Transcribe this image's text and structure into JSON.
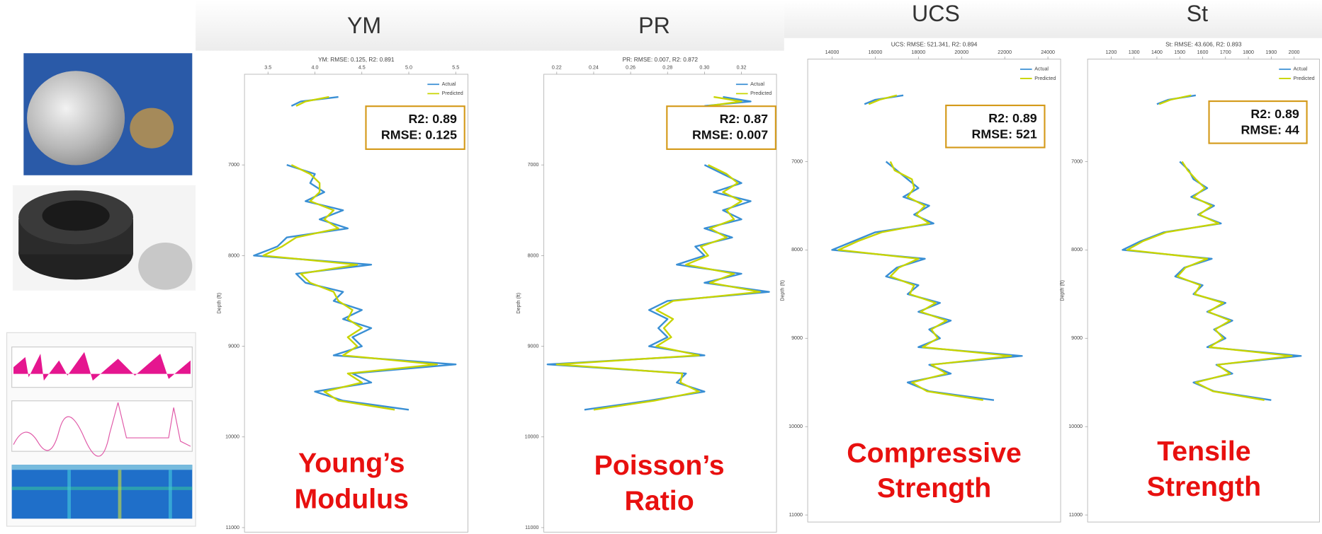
{
  "chart_data": [
    {
      "type": "line",
      "header": "YM",
      "title": "YM: RMSE: 0.125, R2: 0.891",
      "ylabel": "Depth (ft)",
      "xlim": [
        3.25,
        5.63
      ],
      "xticks": [
        3.5,
        {
          "value": 4,
          "label": "4.0"
        },
        4.5,
        {
          "value": 5,
          "label": "5.0"
        },
        5.5
      ],
      "ylim": [
        6000,
        11050
      ],
      "yticks": [
        7000,
        8000,
        9000,
        10000,
        11000
      ],
      "y_inverted": true,
      "y": [
        6250,
        6300,
        6350,
        6600,
        7000,
        7100,
        7200,
        7300,
        7400,
        7500,
        7600,
        7700,
        7800,
        7900,
        8000,
        8100,
        8200,
        8300,
        8400,
        8500,
        8600,
        8700,
        8800,
        8900,
        9000,
        9100,
        9200,
        9300,
        9400,
        9500,
        9600,
        9700
      ],
      "series": [
        {
          "name": "Actual",
          "color": "#3a8fd4",
          "values": [
            4.25,
            3.85,
            3.75,
            null,
            3.7,
            4.0,
            3.95,
            4.1,
            3.9,
            4.3,
            4.05,
            4.35,
            3.7,
            3.6,
            3.35,
            4.6,
            3.8,
            3.9,
            4.3,
            4.2,
            4.5,
            4.3,
            4.6,
            4.4,
            4.5,
            4.2,
            5.5,
            4.4,
            4.6,
            4.0,
            4.3,
            5.0
          ]
        },
        {
          "name": "Predicted",
          "color": "#c8d400",
          "values": [
            4.15,
            3.9,
            3.8,
            null,
            3.75,
            3.95,
            4.05,
            4.05,
            3.95,
            4.2,
            4.1,
            4.25,
            3.8,
            3.65,
            3.45,
            4.45,
            3.85,
            3.95,
            4.2,
            4.25,
            4.4,
            4.35,
            4.5,
            4.35,
            4.45,
            4.3,
            5.3,
            4.35,
            4.5,
            4.1,
            4.25,
            4.85
          ]
        }
      ],
      "annotations": [
        "R2: 0.89",
        "RMSE: 0.125"
      ],
      "caption": [
        "Young’s",
        "Modulus"
      ]
    },
    {
      "type": "line",
      "header": "PR",
      "title": "PR: RMSE: 0.007, R2: 0.872",
      "ylabel": "Depth (ft)",
      "xlim": [
        0.213,
        0.339
      ],
      "xticks": [
        0.22,
        0.24,
        0.26,
        0.28,
        {
          "value": 0.3,
          "label": "0.30"
        },
        0.32
      ],
      "ylim": [
        6000,
        11050
      ],
      "yticks": [
        7000,
        8000,
        9000,
        10000,
        11000
      ],
      "y_inverted": true,
      "y": [
        6250,
        6300,
        6350,
        6600,
        7000,
        7100,
        7200,
        7300,
        7400,
        7500,
        7600,
        7700,
        7800,
        7900,
        8000,
        8100,
        8200,
        8300,
        8400,
        8500,
        8600,
        8700,
        8800,
        8900,
        9000,
        9100,
        9200,
        9300,
        9400,
        9500,
        9600,
        9700
      ],
      "series": [
        {
          "name": "Actual",
          "color": "#3a8fd4",
          "values": [
            0.31,
            0.325,
            0.3,
            null,
            0.3,
            0.31,
            0.32,
            0.305,
            0.325,
            0.31,
            0.32,
            0.3,
            0.315,
            0.295,
            0.3,
            0.285,
            0.32,
            0.3,
            0.335,
            0.28,
            0.27,
            0.28,
            0.275,
            0.28,
            0.27,
            0.3,
            0.215,
            0.29,
            0.285,
            0.3,
            0.27,
            0.235
          ]
        },
        {
          "name": "Predicted",
          "color": "#c8d400",
          "values": [
            0.305,
            0.32,
            0.302,
            null,
            0.302,
            0.312,
            0.318,
            0.31,
            0.32,
            0.312,
            0.316,
            0.303,
            0.312,
            0.298,
            0.302,
            0.29,
            0.316,
            0.303,
            0.33,
            0.283,
            0.274,
            0.283,
            0.278,
            0.282,
            0.274,
            0.297,
            0.22,
            0.288,
            0.287,
            0.297,
            0.273,
            0.24
          ]
        }
      ],
      "annotations": [
        "R2: 0.87",
        "RMSE: 0.007"
      ],
      "caption": [
        "Poisson’s",
        "Ratio"
      ]
    },
    {
      "type": "line",
      "header": "UCS",
      "title": "UCS: RMSE: 521.341, R2: 0.894",
      "ylabel": "Depth (ft)",
      "xlim": [
        12870,
        24590
      ],
      "xticks": [
        14000,
        16000,
        18000,
        20000,
        22000,
        24000
      ],
      "ylim": [
        5840,
        11080
      ],
      "yticks": [
        7000,
        8000,
        9000,
        10000,
        11000
      ],
      "y_inverted": true,
      "y": [
        6250,
        6300,
        6350,
        6600,
        7000,
        7100,
        7200,
        7300,
        7400,
        7500,
        7600,
        7700,
        7800,
        7900,
        8000,
        8100,
        8200,
        8300,
        8400,
        8500,
        8600,
        8700,
        8800,
        8900,
        9000,
        9100,
        9200,
        9300,
        9400,
        9500,
        9600,
        9700
      ],
      "series": [
        {
          "name": "Actual",
          "color": "#3a8fd4",
          "values": [
            17300,
            16000,
            15500,
            null,
            16500,
            17000,
            17500,
            18000,
            17300,
            18500,
            17800,
            18700,
            16000,
            15000,
            14000,
            18300,
            17000,
            16500,
            18000,
            17500,
            19000,
            18000,
            19500,
            18500,
            19000,
            18000,
            22800,
            18500,
            19500,
            17500,
            18500,
            21500
          ]
        },
        {
          "name": "Predicted",
          "color": "#c8d400",
          "values": [
            17000,
            16200,
            15700,
            null,
            16700,
            16900,
            17700,
            17800,
            17500,
            18300,
            17900,
            18500,
            16300,
            15200,
            14300,
            18000,
            17100,
            16700,
            17800,
            17600,
            18800,
            18100,
            19300,
            18600,
            18900,
            18200,
            22300,
            18600,
            19300,
            17700,
            18400,
            21000
          ]
        }
      ],
      "annotations": [
        "R2: 0.89",
        "RMSE: 521"
      ],
      "caption": [
        "Compressive",
        "Strength"
      ]
    },
    {
      "type": "line",
      "header": "St",
      "title": "St: RMSE: 43.606, R2: 0.893",
      "ylabel": "Depth (ft)",
      "xlim": [
        1097,
        2111
      ],
      "xticks": [
        1200,
        1300,
        1400,
        1500,
        1600,
        1700,
        1800,
        1900,
        2000
      ],
      "ylim": [
        5840,
        11080
      ],
      "yticks": [
        7000,
        8000,
        9000,
        10000,
        11000
      ],
      "y_inverted": true,
      "y": [
        6250,
        6300,
        6350,
        6600,
        7000,
        7100,
        7200,
        7300,
        7400,
        7500,
        7600,
        7700,
        7800,
        7900,
        8000,
        8100,
        8200,
        8300,
        8400,
        8500,
        8600,
        8700,
        8800,
        8900,
        9000,
        9100,
        9200,
        9300,
        9400,
        9500,
        9600,
        9700
      ],
      "series": [
        {
          "name": "Actual",
          "color": "#3a8fd4",
          "values": [
            1570,
            1450,
            1400,
            null,
            1500,
            1540,
            1560,
            1620,
            1550,
            1650,
            1580,
            1680,
            1430,
            1330,
            1250,
            1640,
            1520,
            1480,
            1600,
            1560,
            1700,
            1620,
            1730,
            1650,
            1700,
            1620,
            2030,
            1660,
            1730,
            1560,
            1650,
            1900
          ]
        },
        {
          "name": "Predicted",
          "color": "#c8d400",
          "values": [
            1550,
            1460,
            1410,
            null,
            1510,
            1535,
            1570,
            1610,
            1560,
            1640,
            1585,
            1670,
            1440,
            1340,
            1270,
            1620,
            1525,
            1490,
            1590,
            1565,
            1690,
            1625,
            1720,
            1655,
            1690,
            1630,
            1990,
            1665,
            1720,
            1570,
            1645,
            1870
          ]
        }
      ],
      "annotations": [
        "R2: 0.89",
        "RMSE: 44"
      ],
      "caption": [
        "Tensile",
        "Strength"
      ]
    }
  ]
}
